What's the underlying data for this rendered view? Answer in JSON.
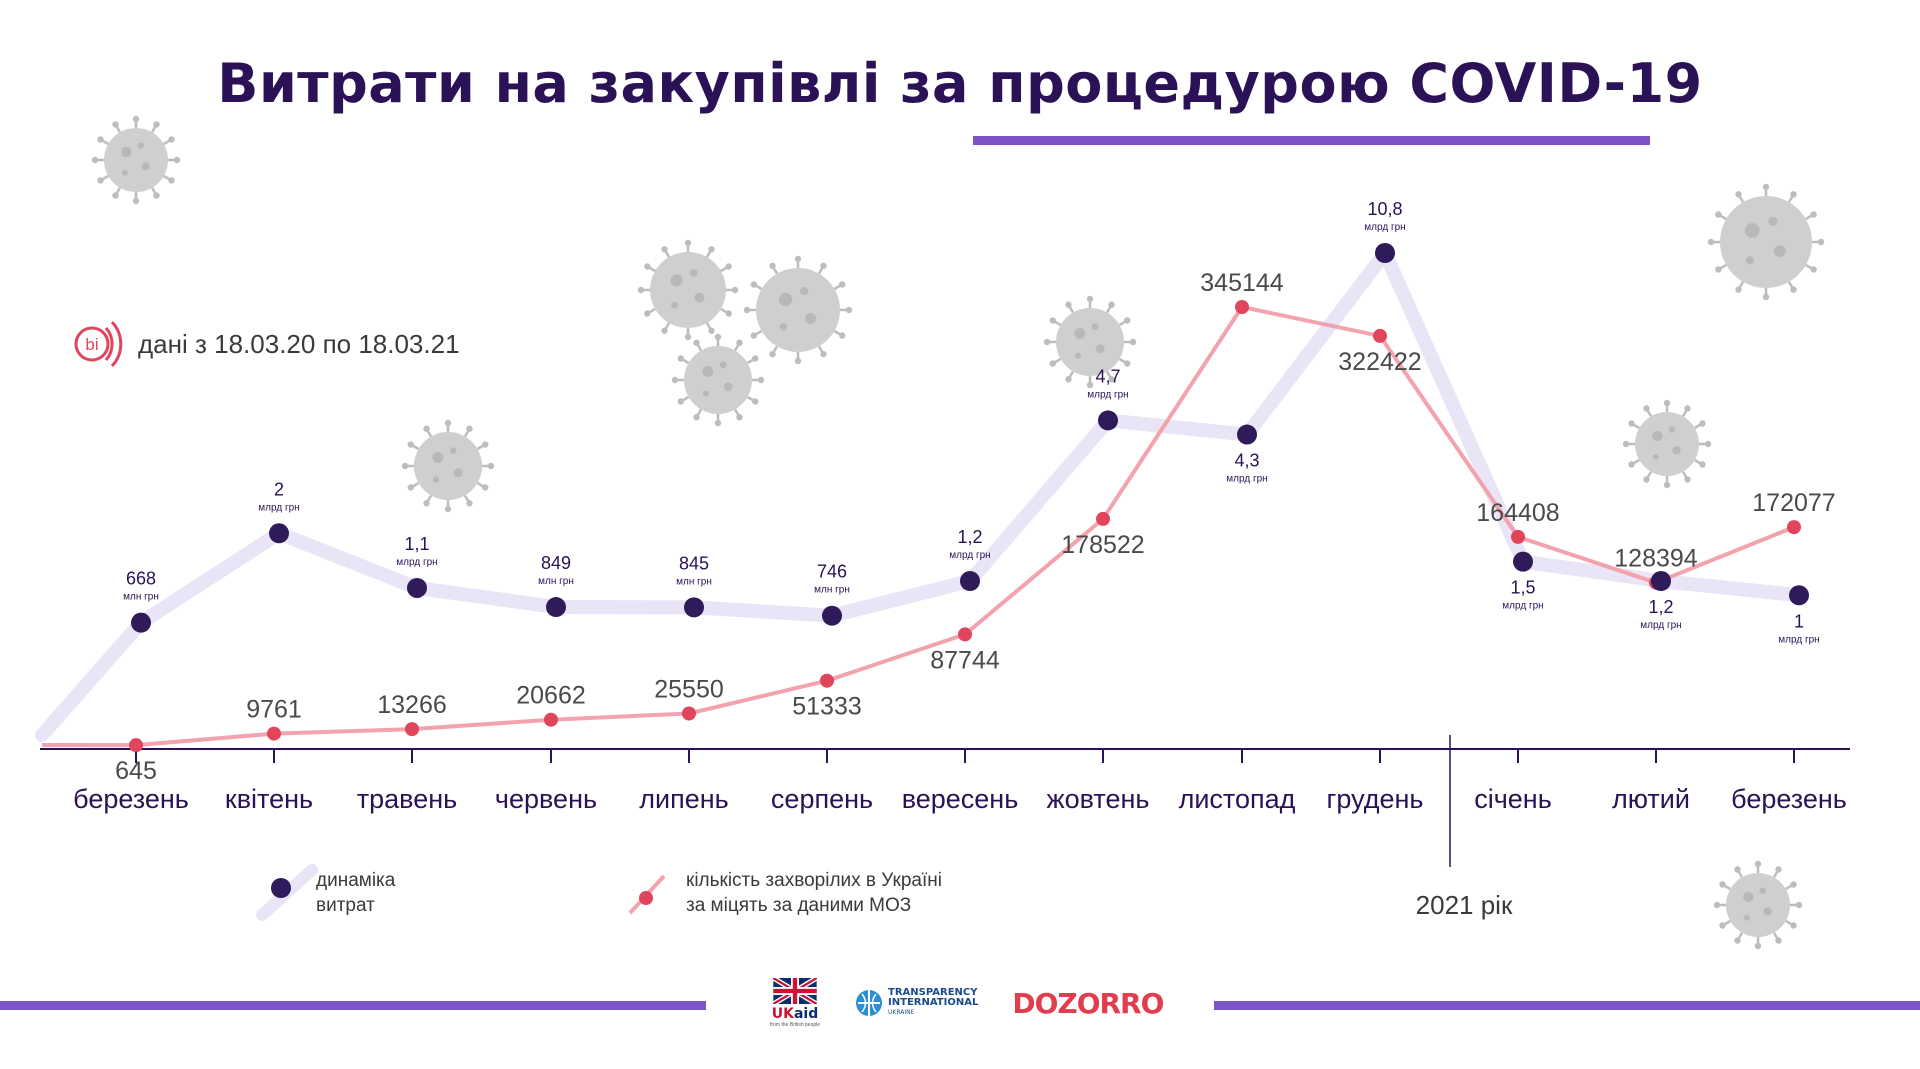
{
  "title": "Витрати на закупівлі за процедурою COVID-19",
  "source_note": "дані з 18.03.20 по 18.03.21",
  "source_logo_text": "bi",
  "year_marker": "2021 рік",
  "legend": {
    "spending_label_line1": "динаміка",
    "spending_label_line2": "витрат",
    "cases_label_line1": "кількість захворілих в Україні",
    "cases_label_line2": "за міцять за даними МОЗ"
  },
  "logos": {
    "ukaid_uk": "UK",
    "ukaid_aid": "aid",
    "ukaid_sub": "from the British people",
    "ti_line1": "TRANSPARENCY",
    "ti_line2": "INTERNATIONAL",
    "ti_line3": "UKRAINE",
    "dozorro": "DOZORRO"
  },
  "colors": {
    "title": "#2b1257",
    "accent": "#7b55c6",
    "spending_dot": "#2f1a5a",
    "spending_line": "#e9e4f6",
    "cases_dot": "#e0455c",
    "cases_line": "#f2a3ad",
    "axis": "#2b1257",
    "virus": "#c9c9c9"
  },
  "chart_data": {
    "type": "line",
    "categories": [
      "березень",
      "квітень",
      "травень",
      "червень",
      "липень",
      "серпень",
      "вересень",
      "жовтень",
      "листопад",
      "грудень",
      "січень",
      "лютий",
      "березень"
    ],
    "series": [
      {
        "name": "динаміка витрат",
        "values_mln_uah": [
          668,
          2000,
          1100,
          849,
          845,
          746,
          1200,
          4700,
          4300,
          10800,
          1500,
          1200,
          1000
        ],
        "labels": [
          "668",
          "2",
          "1,1",
          "849",
          "845",
          "746",
          "1,2",
          "4,7",
          "4,3",
          "10,8",
          "1,5",
          "1,2",
          "1"
        ],
        "units": [
          "млн грн",
          "млрд грн",
          "млрд грн",
          "млн грн",
          "млн грн",
          "млн грн",
          "млрд грн",
          "млрд грн",
          "млрд грн",
          "млрд грн",
          "млрд грн",
          "млрд грн",
          "млрд грн"
        ]
      },
      {
        "name": "кількість захворілих в Україні за міцять за даними МОЗ",
        "values": [
          645,
          9761,
          13266,
          20662,
          25550,
          51333,
          87744,
          178522,
          345144,
          322422,
          164408,
          128394,
          172077
        ],
        "labels": [
          "645",
          "9761",
          "13266",
          "20662",
          "25550",
          "51333",
          "87744",
          "178522",
          "345144",
          "322422",
          "164408",
          "128394",
          "172077"
        ]
      }
    ]
  }
}
